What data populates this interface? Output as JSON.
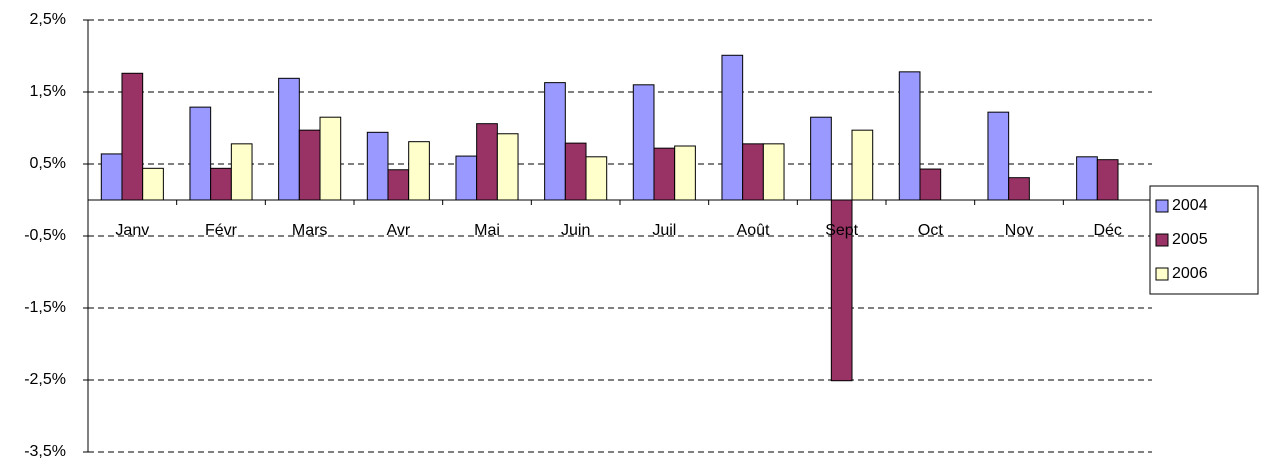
{
  "chart_data": {
    "type": "bar",
    "categories": [
      "Janv",
      "Févr",
      "Mars",
      "Avr",
      "Mai",
      "Juin",
      "Juil",
      "Août",
      "Sept",
      "Oct",
      "Nov",
      "Déc"
    ],
    "series": [
      {
        "name": "2004",
        "color": "#9999ff",
        "values": [
          0.64,
          1.29,
          1.69,
          0.94,
          0.61,
          1.63,
          1.6,
          2.01,
          1.15,
          1.78,
          1.22,
          0.6
        ]
      },
      {
        "name": "2005",
        "color": "#993366",
        "values": [
          1.76,
          0.44,
          0.97,
          0.42,
          1.06,
          0.79,
          0.72,
          0.78,
          -2.51,
          0.43,
          0.31,
          0.56
        ]
      },
      {
        "name": "2006",
        "color": "#ffffcc",
        "values": [
          0.44,
          0.78,
          1.15,
          0.81,
          0.92,
          0.6,
          0.75,
          0.78,
          0.97,
          null,
          null,
          null
        ]
      }
    ],
    "ylim": [
      -3.5,
      2.5
    ],
    "yticks": [
      {
        "value": 2.5,
        "label": "2,5%"
      },
      {
        "value": 1.5,
        "label": "1,5%"
      },
      {
        "value": 0.5,
        "label": "0,5%"
      },
      {
        "value": -0.5,
        "label": "-0,5%"
      },
      {
        "value": -1.5,
        "label": "-1,5%"
      },
      {
        "value": -2.5,
        "label": "-2,5%"
      },
      {
        "value": -3.5,
        "label": "-3,5%"
      }
    ],
    "grid": true,
    "legend": "right"
  }
}
